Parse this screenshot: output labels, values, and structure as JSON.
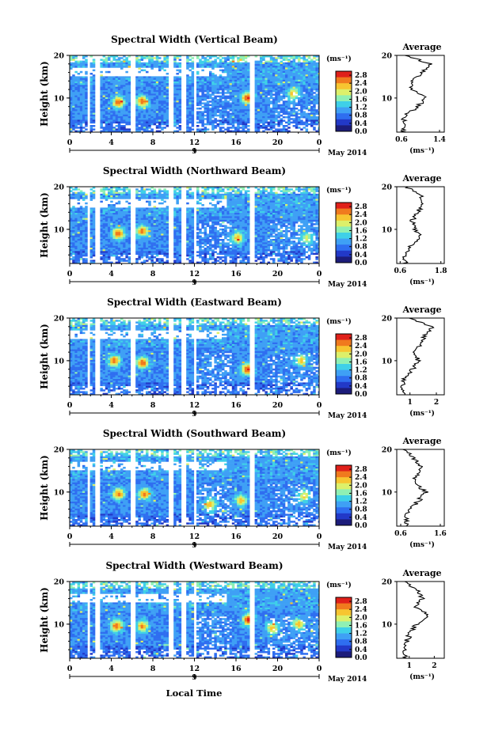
{
  "figure": {
    "date_label": "May 2014",
    "xlabel": "Local Time",
    "day_label": "9",
    "ylabel": "Height (km)",
    "units_label": "(ms⁻¹)",
    "avg_title": "Average",
    "avg_xlabel": "(ms⁻¹)",
    "x_ticks": [
      "0",
      "4",
      "8",
      "12",
      "16",
      "20",
      "0"
    ],
    "y_ticks": [
      "20",
      "10"
    ],
    "colorbar_ticks": [
      "2.8",
      "2.4",
      "2.0",
      "1.6",
      "1.2",
      "0.8",
      "0.4",
      "0.0"
    ],
    "colors": [
      "#1c1c7a",
      "#2239c8",
      "#2f6ef0",
      "#3fa0f5",
      "#3fd0e8",
      "#8ff0b4",
      "#ddf06a",
      "#f7c531",
      "#f07a1e",
      "#e0201a"
    ]
  },
  "panels": [
    {
      "title": "Spectral Width (Vertical Beam)",
      "avg_ticks": [
        "0.6",
        "1.4"
      ],
      "avg_xlim": [
        0.5,
        1.5
      ]
    },
    {
      "title": "Spectral Width (Northward Beam)",
      "avg_ticks": [
        "0.6",
        "1.8"
      ],
      "avg_xlim": [
        0.5,
        1.9
      ]
    },
    {
      "title": "Spectral Width (Eastward Beam)",
      "avg_ticks": [
        "1",
        "2"
      ],
      "avg_xlim": [
        0.5,
        2.3
      ]
    },
    {
      "title": "Spectral Width (Southward Beam)",
      "avg_ticks": [
        "0.6",
        "1.6"
      ],
      "avg_xlim": [
        0.5,
        1.7
      ]
    },
    {
      "title": "Spectral Width (Westward Beam)",
      "avg_ticks": [
        "1",
        "2"
      ],
      "avg_xlim": [
        0.5,
        2.4
      ]
    }
  ],
  "chart_data": [
    {
      "type": "heatmap",
      "title": "Spectral Width (Vertical Beam)",
      "xlabel": "",
      "ylabel": "Height (km)",
      "xlim": [
        0,
        24
      ],
      "ylim": [
        2,
        20
      ],
      "zlim": [
        0.0,
        3.0
      ],
      "x_tick_labels": [
        "0",
        "4",
        "8",
        "12",
        "16",
        "20",
        "0"
      ],
      "y_tick_labels": [
        "20",
        "10"
      ],
      "colorbar_label": "(ms⁻¹)",
      "data_gaps_local_time": [
        [
          1.6,
          2.0
        ],
        [
          2.5,
          2.9
        ],
        [
          5.8,
          6.3
        ],
        [
          9.6,
          10.0
        ],
        [
          10.7,
          11.1
        ],
        [
          12.0,
          12.3
        ],
        [
          17.4,
          17.9
        ]
      ],
      "hotspots": [
        {
          "time": 4.7,
          "height": 9.0,
          "value": 2.7
        },
        {
          "time": 7.0,
          "height": 9.2,
          "value": 2.7
        },
        {
          "time": 17.1,
          "height": 10.0,
          "value": 2.8
        },
        {
          "time": 21.5,
          "height": 11.0,
          "value": 2.3
        }
      ],
      "average_profile": {
        "heights_km": [
          2,
          4,
          6,
          8,
          10,
          12,
          14,
          16,
          18,
          20
        ],
        "values": [
          0.65,
          0.62,
          0.68,
          0.95,
          1.1,
          0.8,
          0.85,
          1.05,
          1.2,
          0.7
        ],
        "xlim": [
          0.5,
          1.5
        ],
        "x_tick_labels": [
          "0.6",
          "1.4"
        ]
      }
    },
    {
      "type": "heatmap",
      "title": "Spectral Width (Northward Beam)",
      "xlabel": "",
      "ylabel": "Height (km)",
      "xlim": [
        0,
        24
      ],
      "ylim": [
        2,
        20
      ],
      "zlim": [
        0.0,
        3.0
      ],
      "x_tick_labels": [
        "0",
        "4",
        "8",
        "12",
        "16",
        "20",
        "0"
      ],
      "y_tick_labels": [
        "20",
        "10"
      ],
      "colorbar_label": "(ms⁻¹)",
      "data_gaps_local_time": [
        [
          1.6,
          2.0
        ],
        [
          2.5,
          2.9
        ],
        [
          5.8,
          6.3
        ],
        [
          9.6,
          10.0
        ],
        [
          10.7,
          11.1
        ],
        [
          12.0,
          12.3
        ],
        [
          17.4,
          17.9
        ]
      ],
      "hotspots": [
        {
          "time": 4.7,
          "height": 9.0,
          "value": 2.7
        },
        {
          "time": 7.0,
          "height": 9.6,
          "value": 2.6
        },
        {
          "time": 16.2,
          "height": 8.0,
          "value": 2.4
        },
        {
          "time": 22.8,
          "height": 8.0,
          "value": 2.0
        }
      ],
      "average_profile": {
        "heights_km": [
          2,
          4,
          6,
          8,
          10,
          12,
          14,
          16,
          18,
          20
        ],
        "values": [
          0.75,
          0.7,
          0.9,
          1.25,
          1.05,
          0.95,
          1.1,
          1.3,
          1.2,
          0.8
        ],
        "xlim": [
          0.5,
          1.9
        ],
        "x_tick_labels": [
          "0.6",
          "1.8"
        ]
      }
    },
    {
      "type": "heatmap",
      "title": "Spectral Width (Eastward Beam)",
      "xlabel": "",
      "ylabel": "Height (km)",
      "xlim": [
        0,
        24
      ],
      "ylim": [
        2,
        20
      ],
      "zlim": [
        0.0,
        3.0
      ],
      "x_tick_labels": [
        "0",
        "4",
        "8",
        "12",
        "16",
        "20",
        "0"
      ],
      "y_tick_labels": [
        "20",
        "10"
      ],
      "colorbar_label": "(ms⁻¹)",
      "data_gaps_local_time": [
        [
          1.6,
          2.0
        ],
        [
          2.5,
          2.9
        ],
        [
          5.8,
          6.3
        ],
        [
          9.6,
          10.0
        ],
        [
          10.7,
          11.1
        ],
        [
          12.0,
          12.3
        ],
        [
          17.4,
          17.9
        ]
      ],
      "hotspots": [
        {
          "time": 4.3,
          "height": 10.0,
          "value": 2.6
        },
        {
          "time": 7.0,
          "height": 9.5,
          "value": 2.7
        },
        {
          "time": 17.1,
          "height": 8.0,
          "value": 2.8
        },
        {
          "time": 22.3,
          "height": 10.0,
          "value": 2.3
        }
      ],
      "average_profile": {
        "heights_km": [
          2,
          4,
          6,
          8,
          10,
          12,
          14,
          16,
          18,
          20
        ],
        "values": [
          0.8,
          0.75,
          0.8,
          1.1,
          1.3,
          1.2,
          1.4,
          1.6,
          1.9,
          0.9
        ],
        "xlim": [
          0.5,
          2.3
        ],
        "x_tick_labels": [
          "1",
          "2"
        ]
      }
    },
    {
      "type": "heatmap",
      "title": "Spectral Width (Southward Beam)",
      "xlabel": "",
      "ylabel": "Height (km)",
      "xlim": [
        0,
        24
      ],
      "ylim": [
        2,
        20
      ],
      "zlim": [
        0.0,
        3.0
      ],
      "x_tick_labels": [
        "0",
        "4",
        "8",
        "12",
        "16",
        "20",
        "0"
      ],
      "y_tick_labels": [
        "20",
        "10"
      ],
      "colorbar_label": "(ms⁻¹)",
      "data_gaps_local_time": [
        [
          1.6,
          2.0
        ],
        [
          2.5,
          2.9
        ],
        [
          5.8,
          6.3
        ],
        [
          9.6,
          10.0
        ],
        [
          10.7,
          11.1
        ],
        [
          12.0,
          12.3
        ],
        [
          17.4,
          17.9
        ]
      ],
      "hotspots": [
        {
          "time": 4.7,
          "height": 9.5,
          "value": 2.6
        },
        {
          "time": 7.2,
          "height": 9.5,
          "value": 2.6
        },
        {
          "time": 13.5,
          "height": 7.0,
          "value": 2.4
        },
        {
          "time": 16.5,
          "height": 8.0,
          "value": 2.3
        },
        {
          "time": 22.6,
          "height": 9.0,
          "value": 2.2
        }
      ],
      "average_profile": {
        "heights_km": [
          2,
          4,
          6,
          8,
          10,
          12,
          14,
          16,
          18,
          20
        ],
        "values": [
          0.75,
          0.72,
          0.85,
          1.05,
          1.25,
          0.95,
          1.0,
          1.1,
          0.9,
          0.7
        ],
        "xlim": [
          0.5,
          1.7
        ],
        "x_tick_labels": [
          "0.6",
          "1.6"
        ]
      }
    },
    {
      "type": "heatmap",
      "title": "Spectral Width (Westward Beam)",
      "xlabel": "Local Time",
      "ylabel": "Height (km)",
      "xlim": [
        0,
        24
      ],
      "ylim": [
        2,
        20
      ],
      "zlim": [
        0.0,
        3.0
      ],
      "x_tick_labels": [
        "0",
        "4",
        "8",
        "12",
        "16",
        "20",
        "0"
      ],
      "y_tick_labels": [
        "20",
        "10"
      ],
      "colorbar_label": "(ms⁻¹)",
      "data_gaps_local_time": [
        [
          1.6,
          2.0
        ],
        [
          2.5,
          2.9
        ],
        [
          5.8,
          6.3
        ],
        [
          9.6,
          10.0
        ],
        [
          10.7,
          11.1
        ],
        [
          12.0,
          12.3
        ],
        [
          17.4,
          17.9
        ]
      ],
      "hotspots": [
        {
          "time": 4.5,
          "height": 9.5,
          "value": 2.7
        },
        {
          "time": 7.0,
          "height": 9.5,
          "value": 2.5
        },
        {
          "time": 17.2,
          "height": 11.0,
          "value": 2.8
        },
        {
          "time": 19.5,
          "height": 9.0,
          "value": 2.4
        },
        {
          "time": 22.0,
          "height": 10.0,
          "value": 2.3
        }
      ],
      "average_profile": {
        "heights_km": [
          2,
          4,
          6,
          8,
          10,
          12,
          14,
          16,
          18,
          20
        ],
        "values": [
          0.8,
          0.85,
          0.9,
          1.05,
          1.3,
          1.8,
          1.2,
          1.5,
          1.3,
          0.9
        ],
        "xlim": [
          0.5,
          2.4
        ],
        "x_tick_labels": [
          "1",
          "2"
        ]
      }
    }
  ]
}
